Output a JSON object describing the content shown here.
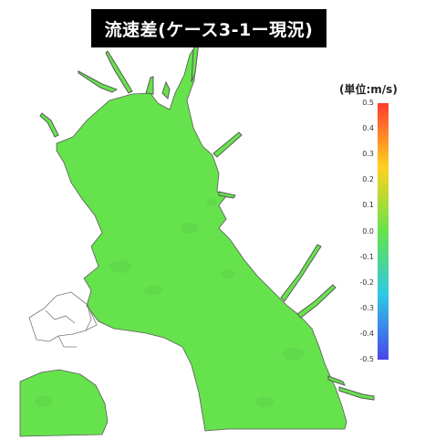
{
  "title": "流速差(ケース3-1ー現況)",
  "legend": {
    "unit_label": "(単位:m/s)",
    "ticks": [
      "0.5",
      "0.4",
      "0.3",
      "0.2",
      "0.1",
      "0.0",
      "-0.1",
      "-0.2",
      "-0.3",
      "-0.4",
      "-0.5"
    ],
    "range": [
      -0.5,
      0.5
    ],
    "colors": {
      "max": "#ff3b30",
      "upper": "#ffd21e",
      "zero": "#66e24c",
      "lower": "#2ec8e6",
      "min": "#4a46e8"
    }
  },
  "map": {
    "water_color": "#66e24c",
    "coast_color": "#555555",
    "dominant_value": 0.0
  }
}
